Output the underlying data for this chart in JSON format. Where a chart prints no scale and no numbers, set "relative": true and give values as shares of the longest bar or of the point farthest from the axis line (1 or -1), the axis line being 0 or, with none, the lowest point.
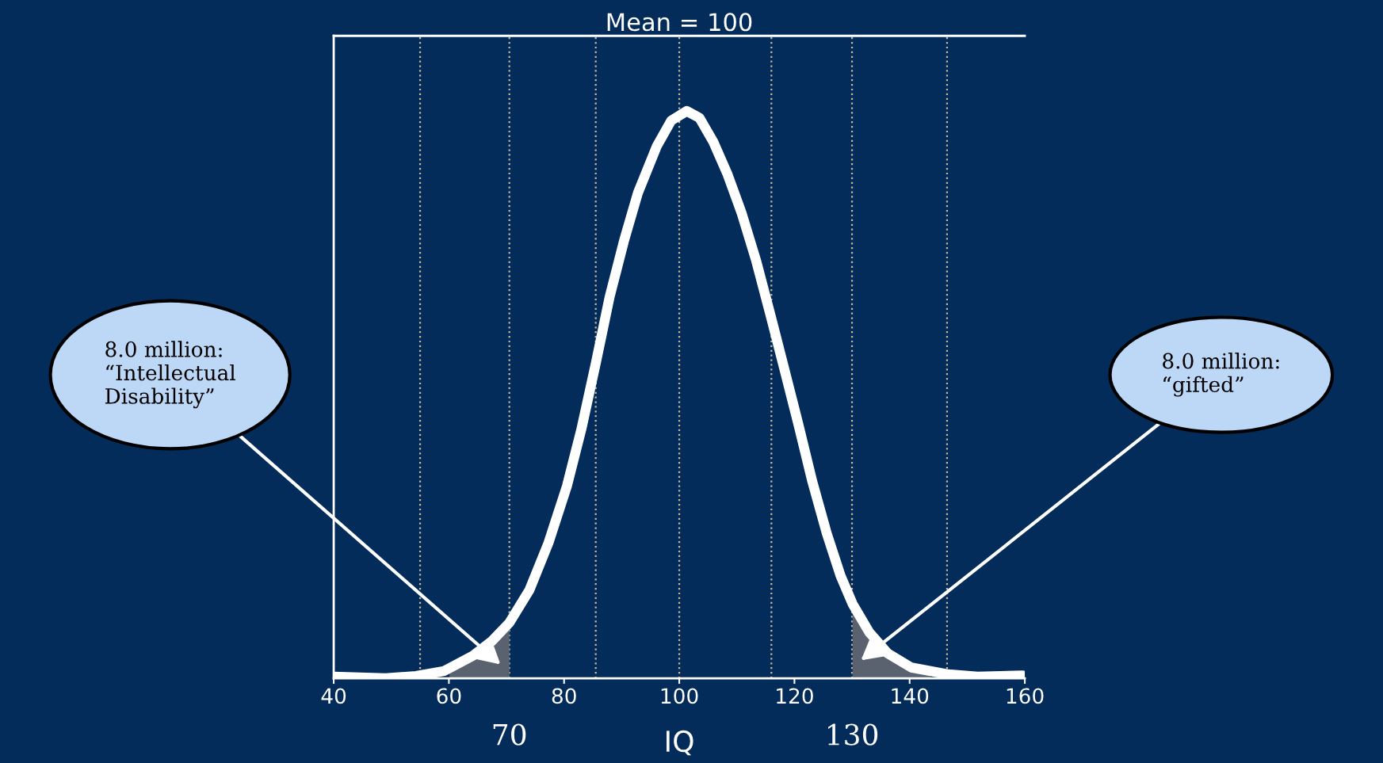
{
  "chart_data": {
    "type": "line",
    "relative": true,
    "xlabel": "IQ",
    "xlim": [
      40,
      160
    ],
    "xticks": [
      40,
      60,
      80,
      100,
      120,
      140,
      160
    ],
    "tick_labels": "x",
    "grid": false,
    "marker": "none",
    "line_style": "solid",
    "series": [
      {
        "color": "#ffffff",
        "x": [
          40,
          49,
          54.3,
          59.2,
          64.2,
          67.4,
          70.5,
          74,
          77.3,
          80.5,
          83,
          85.5,
          87.9,
          90.4,
          92.8,
          96.1,
          98.6,
          101.3,
          103.5,
          105.9,
          108.4,
          110.8,
          113.3,
          115.9,
          118.2,
          120.7,
          123.1,
          125.6,
          128,
          130.1,
          133,
          136.2,
          140.3,
          146.7,
          151.8,
          159.6
        ],
        "values": [
          0.003,
          0,
          0.004,
          0.013,
          0.04,
          0.065,
          0.098,
          0.156,
          0.239,
          0.339,
          0.439,
          0.555,
          0.672,
          0.771,
          0.855,
          0.938,
          0.983,
          1,
          0.988,
          0.946,
          0.888,
          0.821,
          0.738,
          0.638,
          0.547,
          0.447,
          0.347,
          0.256,
          0.181,
          0.131,
          0.081,
          0.044,
          0.019,
          0.007,
          0.003,
          0.005
        ]
      },
      {
        "type": "area",
        "color": "#5a6270",
        "x": [
          60.1,
          64.2,
          67.4,
          70.5
        ],
        "values": [
          0.01,
          0.04,
          0.065,
          0.098
        ]
      },
      {
        "type": "area",
        "color": "#5a6270",
        "x": [
          130.1,
          133,
          136.2,
          140.3,
          143.6
        ],
        "values": [
          0.131,
          0.081,
          0.044,
          0.019,
          0.01
        ]
      }
    ],
    "ref_lines": [
      {
        "axis": "x",
        "value": 55,
        "color": "#c8b89a",
        "line_style": "dotted"
      },
      {
        "axis": "x",
        "value": 70.5,
        "label": "70",
        "color": "#c8b89a",
        "line_style": "dotted"
      },
      {
        "axis": "x",
        "value": 85.5,
        "color": "#c8b89a",
        "line_style": "dotted"
      },
      {
        "axis": "x",
        "value": 100,
        "label": "Mean = 100",
        "color": "#c8b89a",
        "line_style": "dotted"
      },
      {
        "axis": "x",
        "value": 116,
        "color": "#c8b89a",
        "line_style": "dotted"
      },
      {
        "axis": "x",
        "value": 130,
        "label": "130",
        "color": "#c8b89a",
        "line_style": "dotted"
      },
      {
        "axis": "x",
        "value": 146.5,
        "color": "#c8b89a",
        "line_style": "dotted"
      }
    ],
    "annotations": [
      "8.0 million:\n“Intellectual\nDisability”",
      "8.0 million:\n“gifted”"
    ]
  }
}
